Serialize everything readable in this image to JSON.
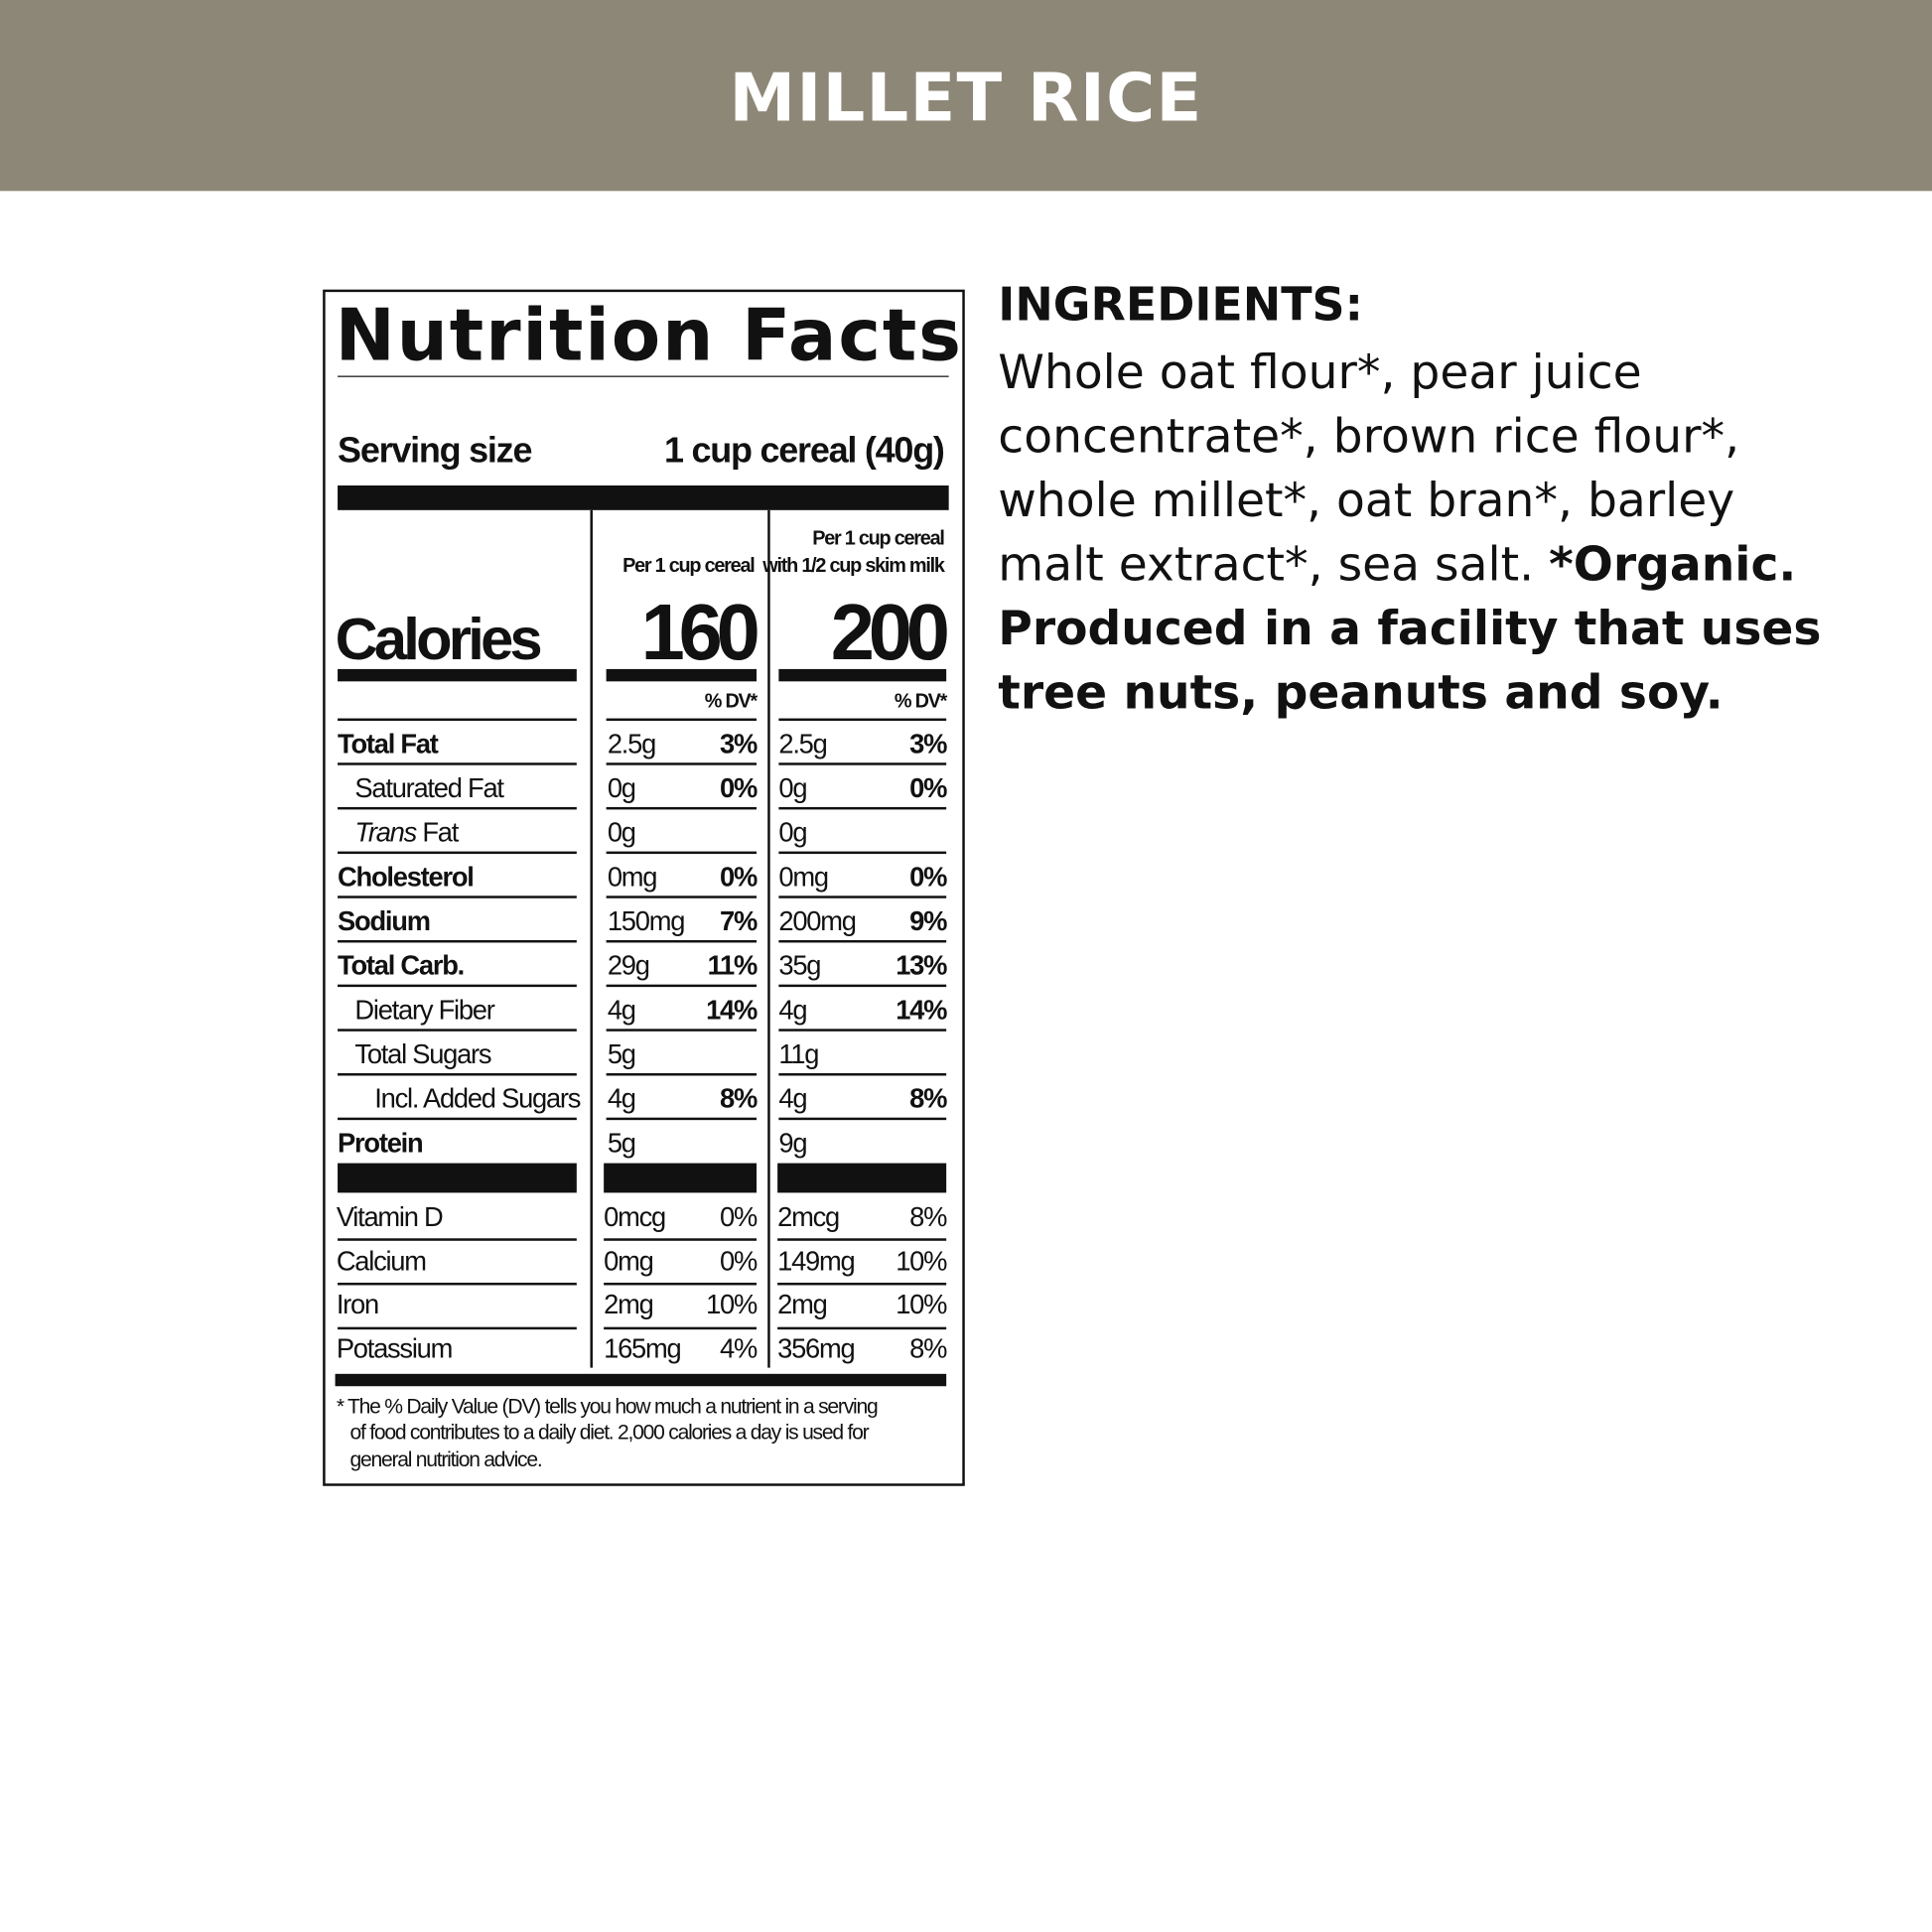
{
  "header": {
    "title": "MILLET RICE",
    "background_color": "#8d8777"
  },
  "label": {
    "title": "Nutrition Facts",
    "serving_size_label": "Serving size",
    "serving_size_value": "1 cup cereal (40g)",
    "col1_header": "Per 1 cup cereal",
    "col2_header_line1": "Per 1 cup cereal",
    "col2_header_line2": "with 1/2 cup skim milk",
    "calories_label": "Calories",
    "calories_col1": "160",
    "calories_col2": "200",
    "dv_header": "% DV*",
    "rows": [
      {
        "name": "Total Fat",
        "bold": true,
        "indent": 0,
        "a1": "2.5g",
        "d1": "3%",
        "a2": "2.5g",
        "d2": "3%"
      },
      {
        "name": "Saturated Fat",
        "bold": false,
        "indent": 1,
        "a1": "0g",
        "d1": "0%",
        "a2": "0g",
        "d2": "0%"
      },
      {
        "name": "Trans Fat",
        "bold": false,
        "indent": 1,
        "italic_prefix": "Trans",
        "a1": "0g",
        "d1": "",
        "a2": "0g",
        "d2": ""
      },
      {
        "name": "Cholesterol",
        "bold": true,
        "indent": 0,
        "a1": "0mg",
        "d1": "0%",
        "a2": "0mg",
        "d2": "0%"
      },
      {
        "name": "Sodium",
        "bold": true,
        "indent": 0,
        "a1": "150mg",
        "d1": "7%",
        "a2": "200mg",
        "d2": "9%"
      },
      {
        "name": "Total Carb.",
        "bold": true,
        "indent": 0,
        "a1": "29g",
        "d1": "11%",
        "a2": "35g",
        "d2": "13%"
      },
      {
        "name": "Dietary Fiber",
        "bold": false,
        "indent": 1,
        "a1": "4g",
        "d1": "14%",
        "a2": "4g",
        "d2": "14%"
      },
      {
        "name": "Total Sugars",
        "bold": false,
        "indent": 1,
        "a1": "5g",
        "d1": "",
        "a2": "11g",
        "d2": ""
      },
      {
        "name": "Incl. Added Sugars",
        "bold": false,
        "indent": 2,
        "a1": "4g",
        "d1": "8%",
        "a2": "4g",
        "d2": "8%"
      },
      {
        "name": "Protein",
        "bold": true,
        "indent": 0,
        "a1": "5g",
        "d1": "",
        "a2": "9g",
        "d2": ""
      }
    ],
    "vitamins": [
      {
        "name": "Vitamin D",
        "a1": "0mcg",
        "d1": "0%",
        "a2": "2mcg",
        "d2": "8%"
      },
      {
        "name": "Calcium",
        "a1": "0mg",
        "d1": "0%",
        "a2": "149mg",
        "d2": "10%"
      },
      {
        "name": "Iron",
        "a1": "2mg",
        "d1": "10%",
        "a2": "2mg",
        "d2": "10%"
      },
      {
        "name": "Potassium",
        "a1": "165mg",
        "d1": "4%",
        "a2": "356mg",
        "d2": "8%"
      }
    ],
    "footnote_lines": [
      "* The % Daily Value (DV) tells you how much a nutrient in a serving",
      "of food contributes to a daily diet. 2,000 calories a day is used for",
      "general nutrition advice."
    ]
  },
  "ingredients": {
    "heading": "INGREDIENTS:",
    "lines": [
      "Whole oat flour*, pear juice",
      "concentrate*, brown rice flour*,",
      "whole millet*, oat bran*, barley"
    ],
    "line4_regular": "malt extract*, sea salt. ",
    "line4_bold": "*Organic.",
    "bold_lines": [
      "Produced in a facility that uses",
      "tree nuts, peanuts and soy."
    ]
  }
}
